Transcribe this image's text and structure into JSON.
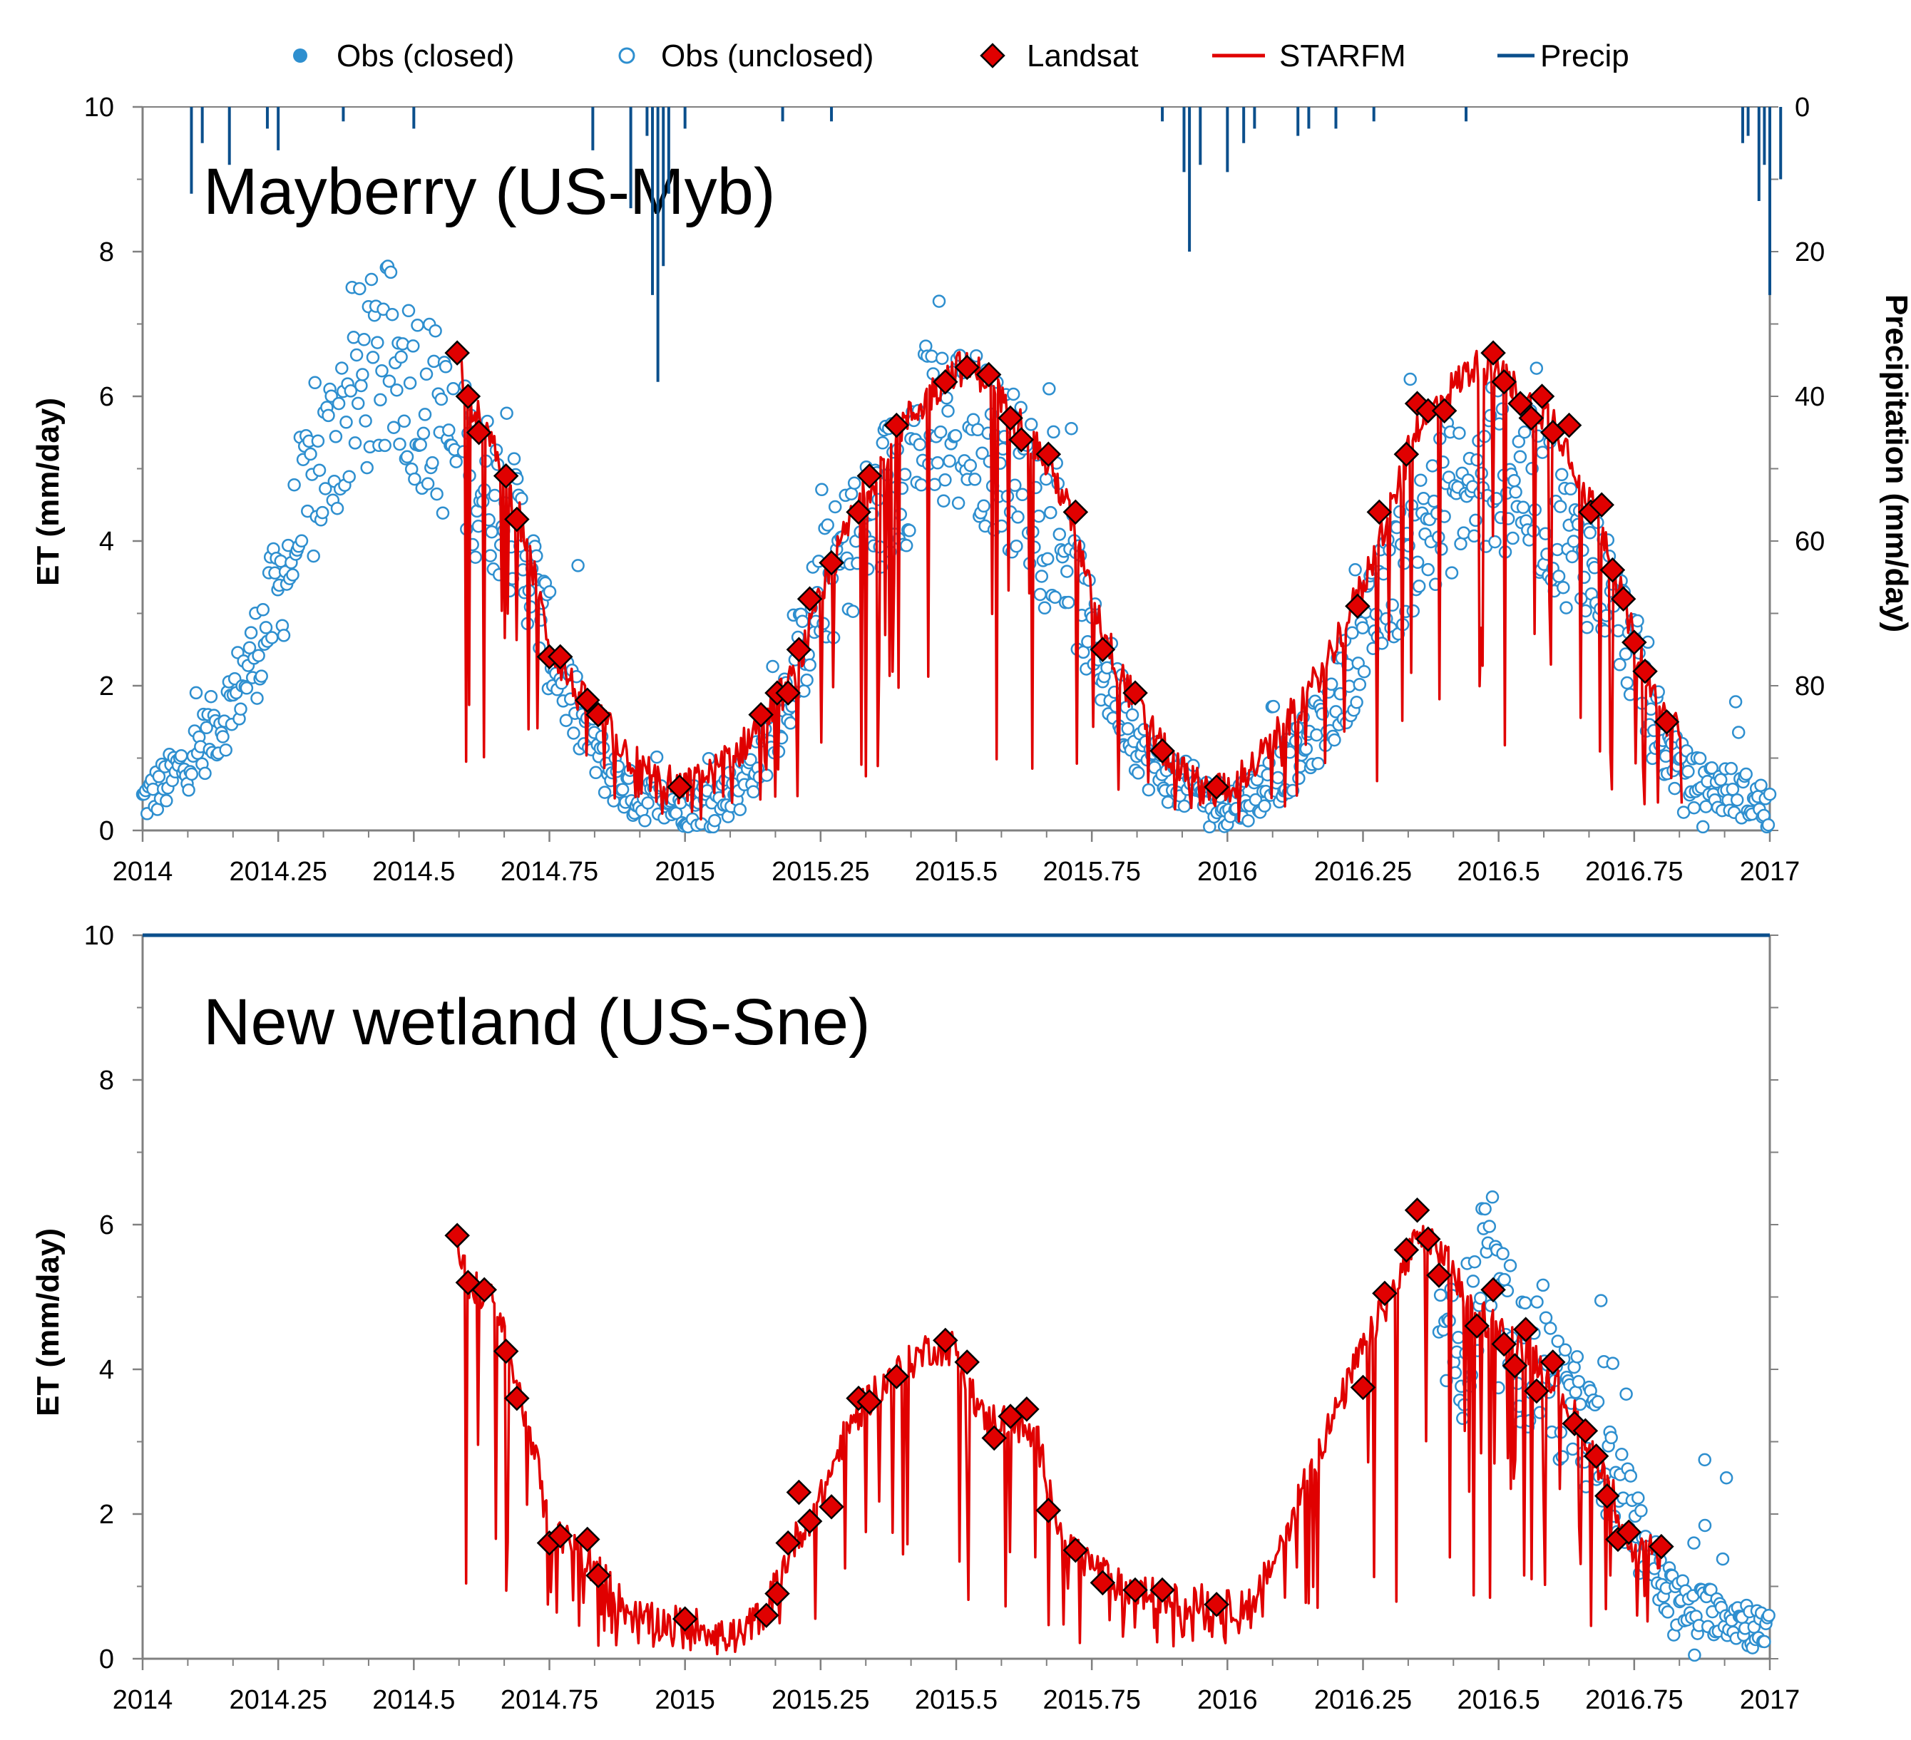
{
  "legend": {
    "obs_closed": "Obs (closed)",
    "obs_unclosed": "Obs (unclosed)",
    "landsat": "Landsat",
    "starfm": "STARFM",
    "precip": "Precip"
  },
  "colors": {
    "obs": "#2e8fcf",
    "landsat_fill": "#e00000",
    "starfm": "#e00000",
    "precip": "#0b4f8c",
    "axis": "#808080"
  },
  "chart_data": [
    {
      "type": "line",
      "title": "Mayberry (US-Myb)",
      "ylabel": "ET (mm/day)",
      "y2label": "Precipitation (mm/day)",
      "xlim": [
        2014,
        2017
      ],
      "ylim": [
        0,
        10
      ],
      "y2lim_inverted": [
        0,
        100
      ],
      "x_ticks": [
        "2014",
        "2014.25",
        "2014.5",
        "2014.75",
        "2015",
        "2015.25",
        "2015.5",
        "2015.75",
        "2016",
        "2016.25",
        "2016.5",
        "2016.75",
        "2017"
      ],
      "x_tick_values": [
        2014,
        2014.25,
        2014.5,
        2014.75,
        2015,
        2015.25,
        2015.5,
        2015.75,
        2016,
        2016.25,
        2016.5,
        2016.75,
        2017
      ],
      "y_ticks": [
        "0",
        "2",
        "4",
        "6",
        "8",
        "10"
      ],
      "y_tick_values": [
        0,
        2,
        4,
        6,
        8,
        10
      ],
      "y2_ticks": [
        "0",
        "20",
        "40",
        "60",
        "80"
      ],
      "y2_tick_values": [
        0,
        20,
        40,
        60,
        80
      ],
      "landsat": [
        [
          2014.58,
          6.6
        ],
        [
          2014.6,
          6.0
        ],
        [
          2014.62,
          5.5
        ],
        [
          2014.67,
          4.9
        ],
        [
          2014.69,
          4.3
        ],
        [
          2014.75,
          2.4
        ],
        [
          2014.77,
          2.4
        ],
        [
          2014.82,
          1.8
        ],
        [
          2014.84,
          1.6
        ],
        [
          2014.99,
          0.6
        ],
        [
          2015.14,
          1.6
        ],
        [
          2015.17,
          1.9
        ],
        [
          2015.19,
          1.9
        ],
        [
          2015.21,
          2.5
        ],
        [
          2015.23,
          3.2
        ],
        [
          2015.27,
          3.7
        ],
        [
          2015.32,
          4.4
        ],
        [
          2015.34,
          4.9
        ],
        [
          2015.39,
          5.6
        ],
        [
          2015.48,
          6.2
        ],
        [
          2015.52,
          6.4
        ],
        [
          2015.56,
          6.3
        ],
        [
          2015.6,
          5.7
        ],
        [
          2015.62,
          5.4
        ],
        [
          2015.67,
          5.2
        ],
        [
          2015.72,
          4.4
        ],
        [
          2015.77,
          2.5
        ],
        [
          2015.83,
          1.9
        ],
        [
          2015.88,
          1.1
        ],
        [
          2015.98,
          0.6
        ],
        [
          2016.24,
          3.1
        ],
        [
          2016.28,
          4.4
        ],
        [
          2016.33,
          5.2
        ],
        [
          2016.35,
          5.9
        ],
        [
          2016.37,
          5.8
        ],
        [
          2016.4,
          5.8
        ],
        [
          2016.49,
          6.6
        ],
        [
          2016.51,
          6.2
        ],
        [
          2016.54,
          5.9
        ],
        [
          2016.56,
          5.7
        ],
        [
          2016.58,
          6.0
        ],
        [
          2016.6,
          5.5
        ],
        [
          2016.63,
          5.6
        ],
        [
          2016.67,
          4.4
        ],
        [
          2016.69,
          4.5
        ],
        [
          2016.71,
          3.6
        ],
        [
          2016.73,
          3.2
        ],
        [
          2016.75,
          2.6
        ],
        [
          2016.77,
          2.2
        ],
        [
          2016.81,
          1.5
        ]
      ],
      "starfm_envelope": [
        [
          2014.58,
          6.6
        ],
        [
          2014.6,
          6.0
        ],
        [
          2014.65,
          5.2
        ],
        [
          2014.7,
          4.2
        ],
        [
          2014.75,
          2.6
        ],
        [
          2014.8,
          1.9
        ],
        [
          2014.85,
          1.5
        ],
        [
          2014.9,
          1.0
        ],
        [
          2014.95,
          0.7
        ],
        [
          2015.0,
          0.6
        ],
        [
          2015.05,
          0.8
        ],
        [
          2015.1,
          1.1
        ],
        [
          2015.15,
          1.6
        ],
        [
          2015.2,
          2.1
        ],
        [
          2015.25,
          3.2
        ],
        [
          2015.3,
          4.2
        ],
        [
          2015.35,
          4.9
        ],
        [
          2015.4,
          5.6
        ],
        [
          2015.45,
          6.0
        ],
        [
          2015.5,
          6.4
        ],
        [
          2015.55,
          6.3
        ],
        [
          2015.6,
          5.8
        ],
        [
          2015.65,
          5.3
        ],
        [
          2015.7,
          4.6
        ],
        [
          2015.75,
          3.2
        ],
        [
          2015.8,
          2.2
        ],
        [
          2015.85,
          1.5
        ],
        [
          2015.9,
          0.9
        ],
        [
          2015.95,
          0.6
        ],
        [
          2016.0,
          0.6
        ],
        [
          2016.05,
          0.9
        ],
        [
          2016.1,
          1.4
        ],
        [
          2016.15,
          1.9
        ],
        [
          2016.2,
          2.6
        ],
        [
          2016.25,
          3.4
        ],
        [
          2016.3,
          4.4
        ],
        [
          2016.35,
          5.6
        ],
        [
          2016.4,
          6.0
        ],
        [
          2016.45,
          6.4
        ],
        [
          2016.5,
          6.4
        ],
        [
          2016.55,
          5.9
        ],
        [
          2016.6,
          5.7
        ],
        [
          2016.65,
          4.9
        ],
        [
          2016.7,
          4.0
        ],
        [
          2016.75,
          2.6
        ],
        [
          2016.8,
          1.6
        ],
        [
          2016.84,
          1.4
        ]
      ],
      "obs_envelope": [
        [
          2014.0,
          0.4
        ],
        [
          2014.05,
          0.7
        ],
        [
          2014.1,
          1.1
        ],
        [
          2014.15,
          1.6
        ],
        [
          2014.2,
          2.3
        ],
        [
          2014.25,
          3.3
        ],
        [
          2014.3,
          4.4
        ],
        [
          2014.35,
          5.4
        ],
        [
          2014.4,
          6.2
        ],
        [
          2014.45,
          6.4
        ],
        [
          2014.5,
          6.2
        ],
        [
          2014.55,
          5.6
        ],
        [
          2014.6,
          5.0
        ],
        [
          2014.65,
          4.6
        ],
        [
          2014.7,
          4.0
        ],
        [
          2014.75,
          2.6
        ],
        [
          2014.8,
          1.6
        ],
        [
          2014.85,
          0.9
        ],
        [
          2014.9,
          0.5
        ],
        [
          2014.95,
          0.4
        ],
        [
          2015.0,
          0.35
        ],
        [
          2015.05,
          0.4
        ],
        [
          2015.1,
          0.6
        ],
        [
          2015.15,
          1.2
        ],
        [
          2015.2,
          2.1
        ],
        [
          2015.25,
          3.3
        ],
        [
          2015.3,
          3.9
        ],
        [
          2015.35,
          4.3
        ],
        [
          2015.4,
          5.0
        ],
        [
          2015.45,
          5.6
        ],
        [
          2015.5,
          5.6
        ],
        [
          2015.55,
          5.4
        ],
        [
          2015.6,
          5.0
        ],
        [
          2015.65,
          4.6
        ],
        [
          2015.7,
          3.9
        ],
        [
          2015.75,
          2.6
        ],
        [
          2015.8,
          1.8
        ],
        [
          2015.85,
          1.0
        ],
        [
          2015.9,
          0.7
        ],
        [
          2015.95,
          0.5
        ],
        [
          2016.0,
          0.35
        ],
        [
          2016.05,
          0.5
        ],
        [
          2016.1,
          0.8
        ],
        [
          2016.15,
          1.2
        ],
        [
          2016.2,
          1.8
        ],
        [
          2016.25,
          2.6
        ],
        [
          2016.3,
          3.4
        ],
        [
          2016.35,
          4.0
        ],
        [
          2016.4,
          4.6
        ],
        [
          2016.45,
          4.6
        ],
        [
          2016.5,
          5.0
        ],
        [
          2016.55,
          4.8
        ],
        [
          2016.6,
          4.3
        ],
        [
          2016.65,
          3.8
        ],
        [
          2016.7,
          3.4
        ],
        [
          2016.75,
          2.4
        ],
        [
          2016.8,
          1.2
        ],
        [
          2016.85,
          0.7
        ],
        [
          2016.9,
          0.6
        ],
        [
          2016.95,
          0.5
        ],
        [
          2017.0,
          0.3
        ]
      ],
      "obs_gaps": [
        [
          2014.58,
          2014.59
        ]
      ],
      "precip_events": [
        [
          2014.09,
          12
        ],
        [
          2014.11,
          5
        ],
        [
          2014.16,
          8
        ],
        [
          2014.23,
          3
        ],
        [
          2014.25,
          6
        ],
        [
          2014.37,
          2
        ],
        [
          2014.5,
          3
        ],
        [
          2014.83,
          6
        ],
        [
          2014.9,
          14
        ],
        [
          2014.93,
          4
        ],
        [
          2014.94,
          26
        ],
        [
          2014.95,
          38
        ],
        [
          2014.96,
          22
        ],
        [
          2014.97,
          12
        ],
        [
          2015.0,
          3
        ],
        [
          2015.18,
          2
        ],
        [
          2015.27,
          2
        ],
        [
          2015.88,
          2
        ],
        [
          2015.92,
          9
        ],
        [
          2015.93,
          20
        ],
        [
          2015.95,
          8
        ],
        [
          2016.0,
          9
        ],
        [
          2016.03,
          5
        ],
        [
          2016.05,
          3
        ],
        [
          2016.13,
          4
        ],
        [
          2016.15,
          3
        ],
        [
          2016.2,
          3
        ],
        [
          2016.27,
          2
        ],
        [
          2016.44,
          2
        ],
        [
          2016.95,
          5
        ],
        [
          2016.96,
          4
        ],
        [
          2016.98,
          13
        ],
        [
          2016.99,
          8
        ],
        [
          2017.0,
          26
        ],
        [
          2017.02,
          10
        ]
      ]
    },
    {
      "type": "line",
      "title": "New wetland (US-Sne)",
      "ylabel": "ET (mm/day)",
      "xlim": [
        2014,
        2017
      ],
      "ylim": [
        0,
        10
      ],
      "x_ticks": [
        "2014",
        "2014.25",
        "2014.5",
        "2014.75",
        "2015",
        "2015.25",
        "2015.5",
        "2015.75",
        "2016",
        "2016.25",
        "2016.5",
        "2016.75",
        "2017"
      ],
      "x_tick_values": [
        2014,
        2014.25,
        2014.5,
        2014.75,
        2015,
        2015.25,
        2015.5,
        2015.75,
        2016,
        2016.25,
        2016.5,
        2016.75,
        2017
      ],
      "y_ticks": [
        "0",
        "2",
        "4",
        "6",
        "8",
        "10"
      ],
      "y_tick_values": [
        0,
        2,
        4,
        6,
        8,
        10
      ],
      "landsat": [
        [
          2014.58,
          5.85
        ],
        [
          2014.6,
          5.2
        ],
        [
          2014.63,
          5.1
        ],
        [
          2014.67,
          4.25
        ],
        [
          2014.69,
          3.6
        ],
        [
          2014.75,
          1.6
        ],
        [
          2014.77,
          1.7
        ],
        [
          2014.82,
          1.65
        ],
        [
          2014.84,
          1.15
        ],
        [
          2015.0,
          0.55
        ],
        [
          2015.15,
          0.6
        ],
        [
          2015.17,
          0.9
        ],
        [
          2015.19,
          1.6
        ],
        [
          2015.21,
          2.3
        ],
        [
          2015.23,
          1.9
        ],
        [
          2015.27,
          2.1
        ],
        [
          2015.32,
          3.6
        ],
        [
          2015.34,
          3.55
        ],
        [
          2015.39,
          3.9
        ],
        [
          2015.48,
          4.4
        ],
        [
          2015.52,
          4.1
        ],
        [
          2015.57,
          3.05
        ],
        [
          2015.6,
          3.35
        ],
        [
          2015.63,
          3.45
        ],
        [
          2015.67,
          2.05
        ],
        [
          2015.72,
          1.5
        ],
        [
          2015.77,
          1.05
        ],
        [
          2015.83,
          0.95
        ],
        [
          2015.88,
          0.95
        ],
        [
          2015.98,
          0.75
        ],
        [
          2016.25,
          3.75
        ],
        [
          2016.29,
          5.05
        ],
        [
          2016.33,
          5.65
        ],
        [
          2016.35,
          6.2
        ],
        [
          2016.37,
          5.8
        ],
        [
          2016.39,
          5.3
        ],
        [
          2016.46,
          4.6
        ],
        [
          2016.49,
          5.1
        ],
        [
          2016.51,
          4.35
        ],
        [
          2016.53,
          4.05
        ],
        [
          2016.55,
          4.55
        ],
        [
          2016.57,
          3.7
        ],
        [
          2016.6,
          4.1
        ],
        [
          2016.64,
          3.25
        ],
        [
          2016.66,
          3.15
        ],
        [
          2016.68,
          2.8
        ],
        [
          2016.7,
          2.25
        ],
        [
          2016.72,
          1.65
        ],
        [
          2016.74,
          1.75
        ],
        [
          2016.8,
          1.55
        ]
      ],
      "starfm_envelope": [
        [
          2014.58,
          5.8
        ],
        [
          2014.6,
          5.2
        ],
        [
          2014.65,
          4.9
        ],
        [
          2014.7,
          3.5
        ],
        [
          2014.72,
          3.0
        ],
        [
          2014.75,
          1.7
        ],
        [
          2014.8,
          1.6
        ],
        [
          2014.85,
          1.1
        ],
        [
          2014.9,
          0.6
        ],
        [
          2014.95,
          0.5
        ],
        [
          2015.0,
          0.5
        ],
        [
          2015.1,
          0.3
        ],
        [
          2015.15,
          0.7
        ],
        [
          2015.2,
          1.6
        ],
        [
          2015.25,
          2.2
        ],
        [
          2015.3,
          3.2
        ],
        [
          2015.35,
          3.7
        ],
        [
          2015.4,
          4.0
        ],
        [
          2015.45,
          4.3
        ],
        [
          2015.5,
          4.3
        ],
        [
          2015.55,
          3.3
        ],
        [
          2015.6,
          3.3
        ],
        [
          2015.65,
          3.0
        ],
        [
          2015.7,
          1.6
        ],
        [
          2015.75,
          1.3
        ],
        [
          2015.8,
          1.0
        ],
        [
          2015.85,
          0.9
        ],
        [
          2015.9,
          0.8
        ],
        [
          2015.95,
          0.8
        ],
        [
          2016.0,
          0.7
        ],
        [
          2016.05,
          0.8
        ],
        [
          2016.1,
          1.6
        ],
        [
          2016.15,
          2.6
        ],
        [
          2016.2,
          3.4
        ],
        [
          2016.25,
          4.3
        ],
        [
          2016.3,
          5.0
        ],
        [
          2016.35,
          5.8
        ],
        [
          2016.4,
          5.6
        ],
        [
          2016.45,
          4.8
        ],
        [
          2016.5,
          4.6
        ],
        [
          2016.55,
          4.3
        ],
        [
          2016.6,
          3.9
        ],
        [
          2016.65,
          3.2
        ],
        [
          2016.7,
          2.5
        ],
        [
          2016.75,
          1.4
        ],
        [
          2016.8,
          1.5
        ]
      ],
      "obs_envelope": [
        [
          2016.39,
          4.5
        ],
        [
          2016.42,
          4.1
        ],
        [
          2016.45,
          4.6
        ],
        [
          2016.48,
          5.4
        ],
        [
          2016.5,
          4.6
        ],
        [
          2016.53,
          4.4
        ],
        [
          2016.55,
          4.0
        ],
        [
          2016.58,
          4.3
        ],
        [
          2016.6,
          3.8
        ],
        [
          2016.63,
          3.4
        ],
        [
          2016.65,
          3.3
        ],
        [
          2016.68,
          3.0
        ],
        [
          2016.7,
          2.7
        ],
        [
          2016.72,
          2.3
        ],
        [
          2016.75,
          1.9
        ],
        [
          2016.78,
          1.4
        ],
        [
          2016.8,
          1.0
        ],
        [
          2016.83,
          0.8
        ],
        [
          2016.86,
          0.6
        ],
        [
          2016.9,
          0.7
        ],
        [
          2016.93,
          0.6
        ],
        [
          2016.96,
          0.5
        ],
        [
          2017.0,
          0.3
        ]
      ],
      "obs_outliers": [
        [
          2016.88,
          2.75
        ],
        [
          2016.92,
          2.5
        ],
        [
          2016.86,
          1.6
        ]
      ],
      "precip_events": []
    }
  ]
}
